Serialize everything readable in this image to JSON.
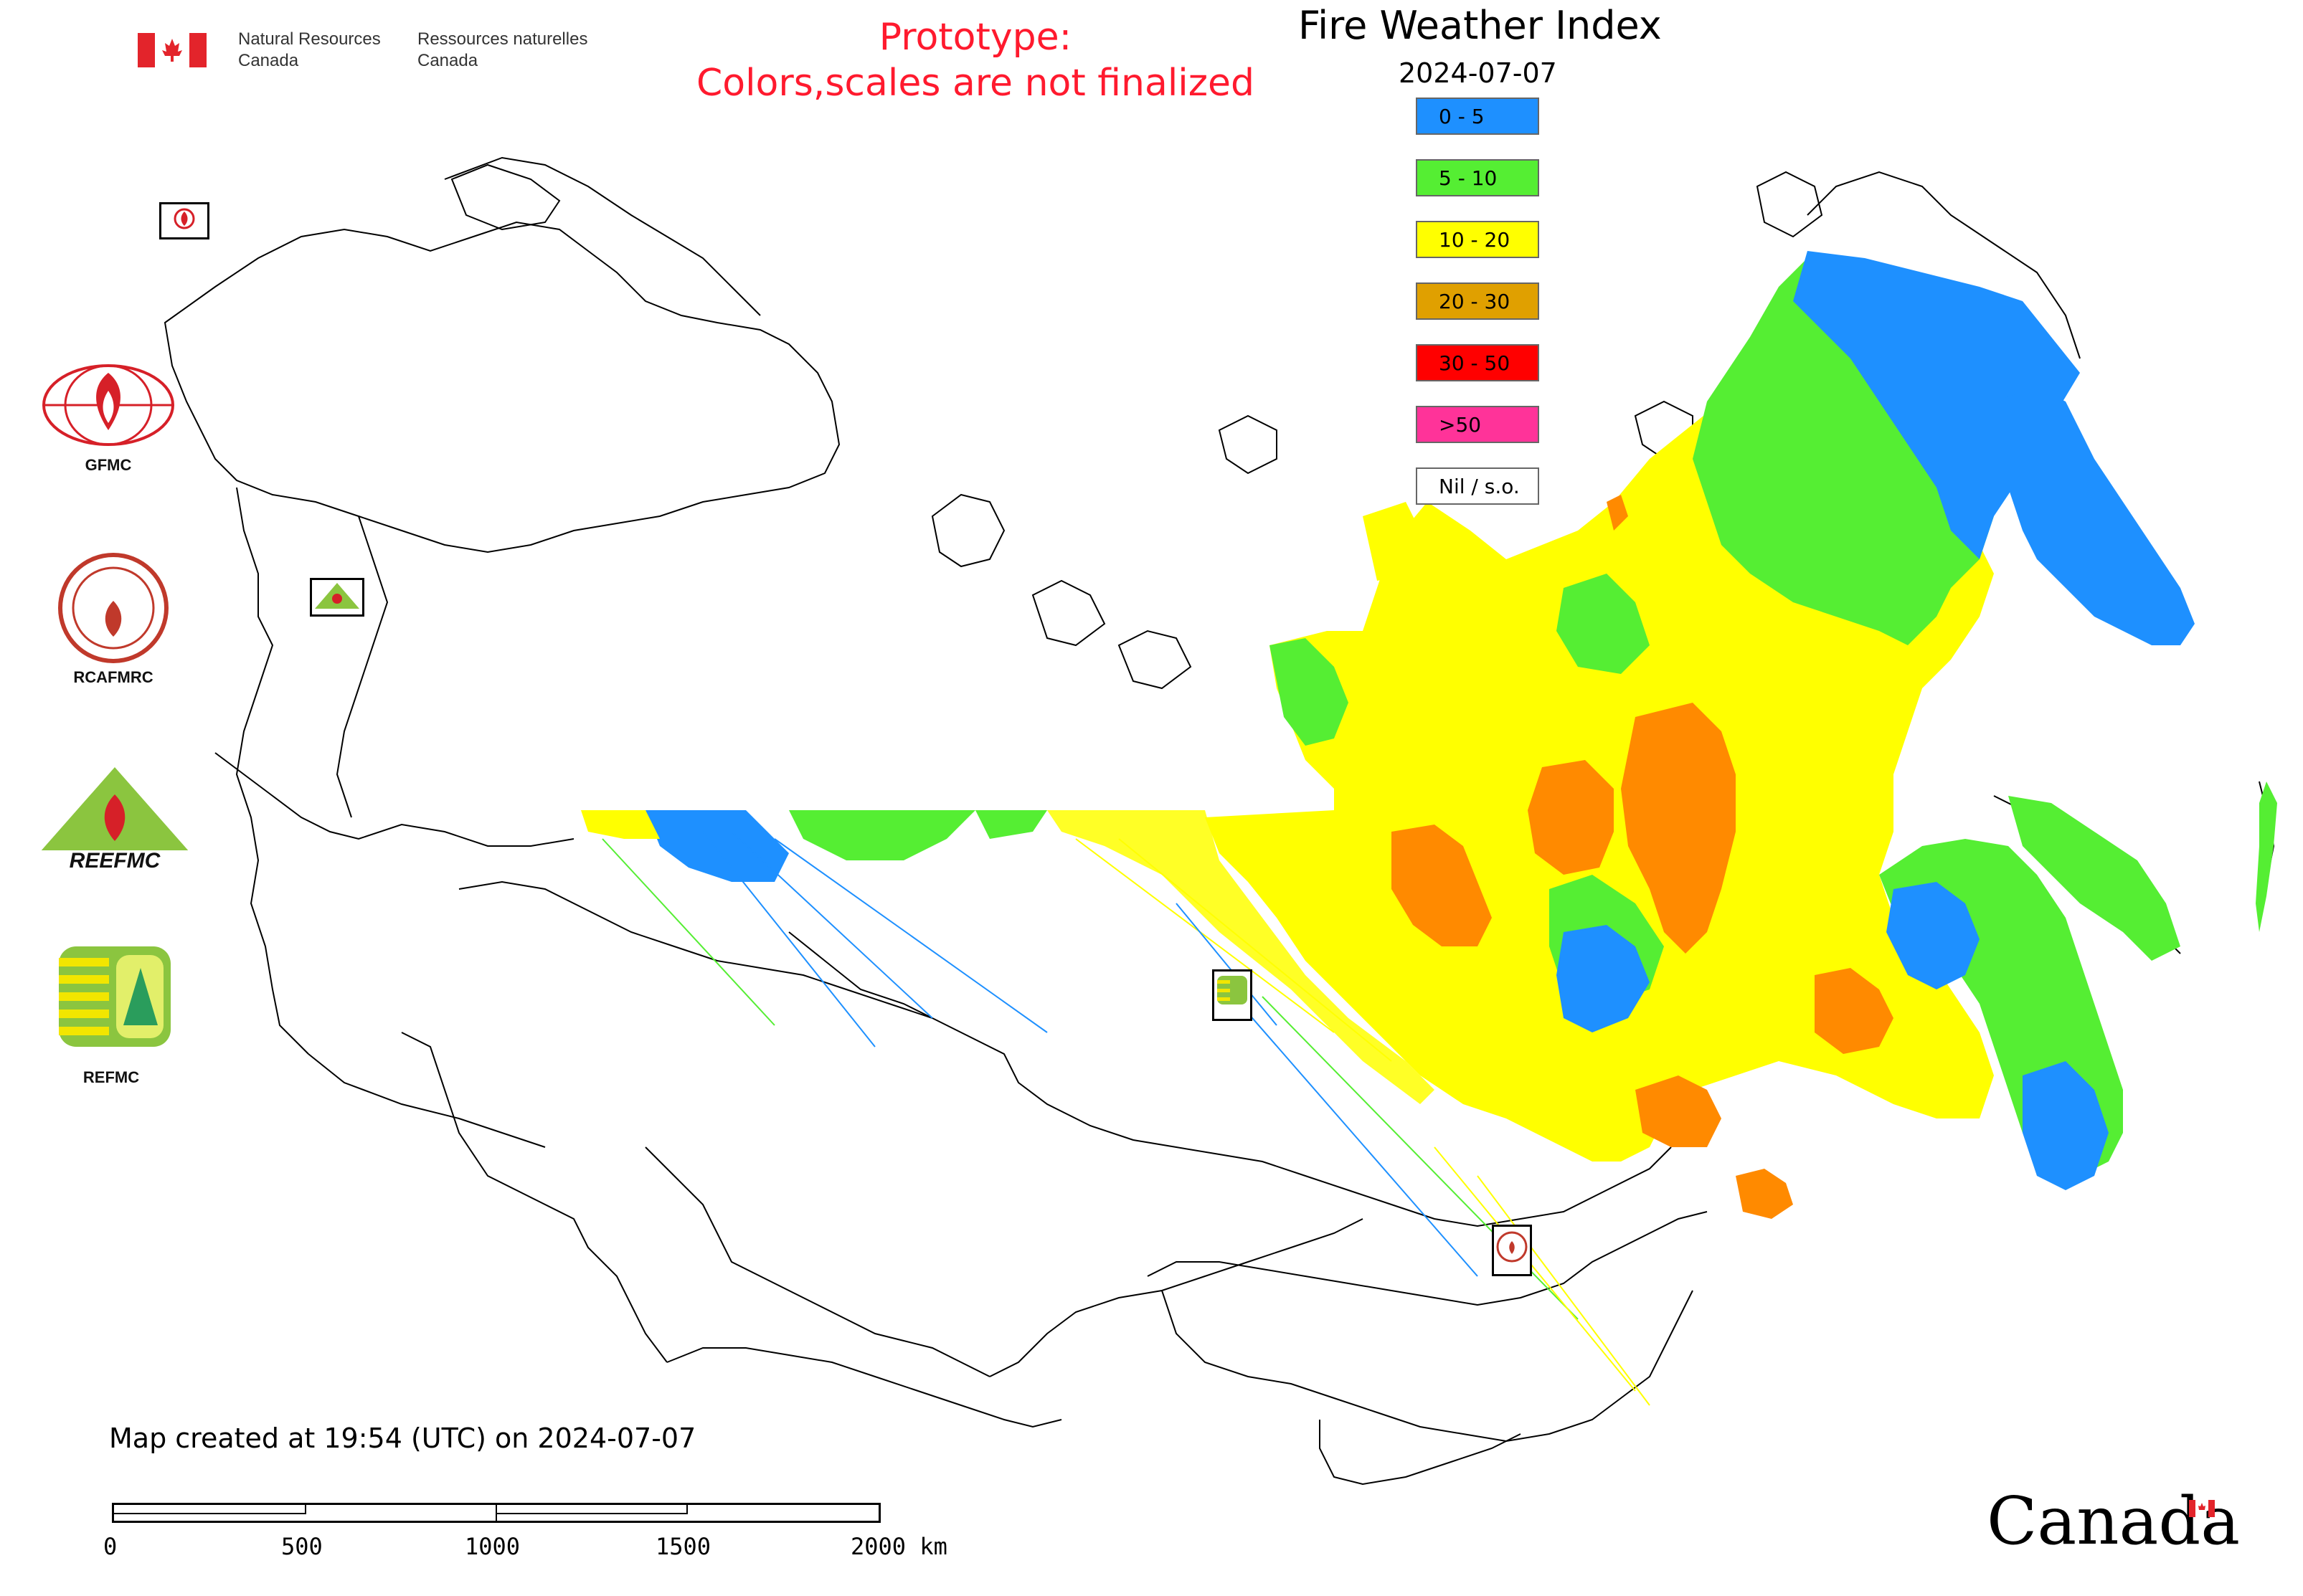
{
  "header": {
    "dept_en_line1": "Natural Resources",
    "dept_en_line2": "Canada",
    "dept_fr_line1": "Ressources naturelles",
    "dept_fr_line2": "Canada",
    "prototype_line1": "Prototype:",
    "prototype_line2": "Colors,scales are not finalized",
    "title": "Fire Weather Index",
    "date": "2024-07-07"
  },
  "legend": {
    "items": [
      {
        "label": "0 - 5",
        "color": "#1e90ff"
      },
      {
        "label": "5 - 10",
        "color": "#55ee33"
      },
      {
        "label": "10 - 20",
        "color": "#ffff00"
      },
      {
        "label": "20 - 30",
        "color": "#e0a000"
      },
      {
        "label": "30 - 50",
        "color": "#ff0000"
      },
      {
        "label": ">50",
        "color": "#ff3399"
      },
      {
        "label": "Nil / s.o.",
        "color": "#ffffff"
      }
    ]
  },
  "logos": {
    "gfmc": "GFMC",
    "rcafmrc": "RCAFMRC",
    "reefmc": "REEFMC",
    "refmc": "REFMC",
    "reefmc_text": "REEFMC"
  },
  "map": {
    "colors": {
      "blue": "#1e90ff",
      "green": "#55ee33",
      "yellow": "#ffff00",
      "orange": "#ff8a00",
      "red": "#ff0000",
      "border": "#000000"
    }
  },
  "footer": {
    "created": "Map created at 19:54 (UTC) on 2024-07-07",
    "scale_labels": [
      "0",
      "500",
      "1000",
      "1500",
      "2000 km"
    ],
    "canada_wordmark": "Canada"
  }
}
